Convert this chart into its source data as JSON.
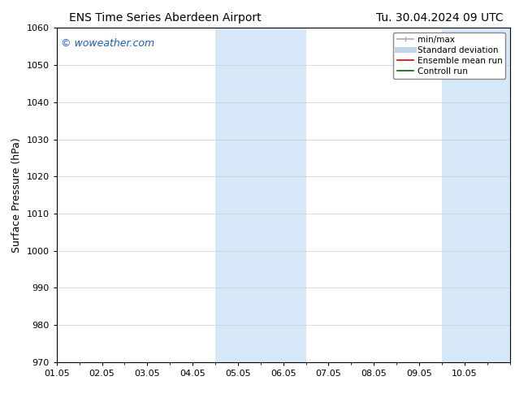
{
  "title_left": "ENS Time Series Aberdeen Airport",
  "title_right": "Tu. 30.04.2024 09 UTC",
  "ylabel": "Surface Pressure (hPa)",
  "ylim": [
    970,
    1060
  ],
  "yticks": [
    970,
    980,
    990,
    1000,
    1010,
    1020,
    1030,
    1040,
    1050,
    1060
  ],
  "xlim_start": 0,
  "xlim_end": 10,
  "xtick_positions": [
    0,
    1,
    2,
    3,
    4,
    5,
    6,
    7,
    8,
    9
  ],
  "xtick_labels": [
    "01.05",
    "02.05",
    "03.05",
    "04.05",
    "05.05",
    "06.05",
    "07.05",
    "08.05",
    "09.05",
    "10.05"
  ],
  "shaded_bands": [
    {
      "x_start": 3.5,
      "x_end": 5.5
    },
    {
      "x_start": 8.5,
      "x_end": 10.0
    }
  ],
  "shade_color": "#d6e8f7",
  "watermark_text": "© woweather.com",
  "watermark_color": "#1a5acd",
  "watermark_fontsize": 9,
  "background_color": "#ffffff",
  "legend_items": [
    {
      "label": "min/max",
      "color": "#aaaaaa",
      "lw": 1.2
    },
    {
      "label": "Standard deviation",
      "color": "#c0d4e8",
      "lw": 5
    },
    {
      "label": "Ensemble mean run",
      "color": "#dd0000",
      "lw": 1.2
    },
    {
      "label": "Controll run",
      "color": "#006600",
      "lw": 1.2
    }
  ],
  "title_fontsize": 10,
  "axis_label_fontsize": 9,
  "tick_fontsize": 8,
  "legend_fontsize": 7.5
}
